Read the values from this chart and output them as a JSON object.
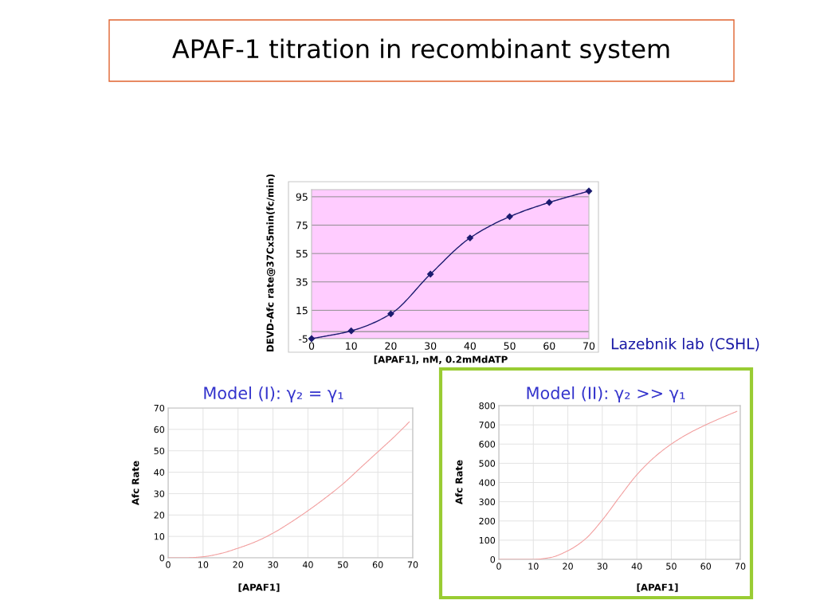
{
  "chart_data": [
    {
      "type": "line",
      "title": "APAF-1 titration in recombinant system",
      "xlabel": "[APAF1], nM, 0.2mMdATP",
      "ylabel": "DEVD-Afc rate@37Cx5min(fc/min)",
      "x": [
        0,
        10,
        20,
        30,
        40,
        50,
        60,
        70
      ],
      "values": [
        -5,
        0.5,
        12.5,
        40.5,
        66,
        81,
        91,
        99
      ],
      "color": "#1b1b6f",
      "marker": "diamond",
      "xlim": [
        0,
        70
      ],
      "ylim": [
        -5,
        100
      ],
      "xticks": [
        0,
        10,
        20,
        30,
        40,
        50,
        60,
        70
      ],
      "yticks": [
        -5,
        15,
        35,
        55,
        75,
        95
      ],
      "grid": "y",
      "ref_lines": [
        {
          "axis": "y",
          "value": 0,
          "color": "#8c8c8c"
        }
      ],
      "annotations": [
        "Lazebnik lab (CSHL)"
      ]
    },
    {
      "type": "line",
      "title": "Model (I): γ₂ = γ₁",
      "xlabel": "[APAF1]",
      "ylabel": "Afc Rate",
      "x": [
        0,
        5,
        10,
        15,
        20,
        25,
        30,
        35,
        40,
        45,
        50,
        55,
        60,
        65,
        69
      ],
      "values": [
        0,
        0,
        0.5,
        2,
        4.5,
        7.5,
        11.5,
        16.5,
        22,
        28,
        34.5,
        42,
        49.5,
        57,
        63.5
      ],
      "color": "#f2a0a0",
      "xlim": [
        0,
        70
      ],
      "ylim": [
        0,
        70
      ],
      "xticks": [
        0,
        10,
        20,
        30,
        40,
        50,
        60,
        70
      ],
      "yticks": [
        0,
        10,
        20,
        30,
        40,
        50,
        60,
        70
      ],
      "grid": true
    },
    {
      "type": "line",
      "title": "Model (II): γ₂ >> γ₁",
      "xlabel": "[APAF1]",
      "ylabel": "Afc Rate",
      "x": [
        0,
        5,
        10,
        15,
        20,
        25,
        30,
        35,
        40,
        45,
        50,
        55,
        60,
        65,
        69
      ],
      "values": [
        0,
        0,
        0,
        10,
        45,
        105,
        205,
        325,
        440,
        530,
        600,
        655,
        700,
        740,
        770
      ],
      "color": "#f2a0a0",
      "xlim": [
        0,
        70
      ],
      "ylim": [
        0,
        800
      ],
      "xticks": [
        0,
        10,
        20,
        30,
        40,
        50,
        60,
        70
      ],
      "yticks": [
        0,
        100,
        200,
        300,
        400,
        500,
        600,
        700,
        800
      ],
      "grid": true
    }
  ]
}
